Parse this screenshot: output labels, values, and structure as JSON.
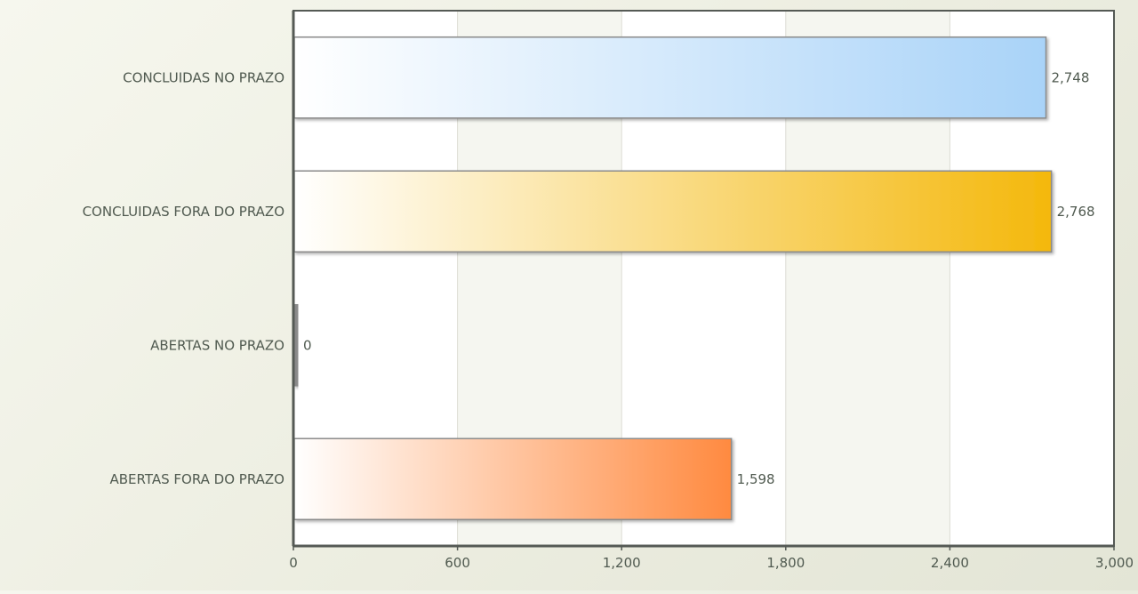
{
  "chart_data": {
    "type": "bar",
    "orientation": "horizontal",
    "categories": [
      "CONCLUIDAS NO PRAZO",
      "CONCLUIDAS FORA DO PRAZO",
      "ABERTAS NO PRAZO",
      "ABERTAS FORA DO PRAZO"
    ],
    "values": [
      2748,
      2768,
      0,
      1598
    ],
    "value_labels": [
      "2,748",
      "2,768",
      "0",
      "1,598"
    ],
    "colors": [
      "#a9d3f8",
      "#f4b80c",
      "#8a8a8a",
      "#ff8a40"
    ],
    "xlim": [
      0,
      3000
    ],
    "xticks": [
      0,
      600,
      1200,
      1800,
      2400,
      3000
    ],
    "xtick_labels": [
      "0",
      "600",
      "1,200",
      "1,800",
      "2,400",
      "3,000"
    ],
    "grid": "vertical",
    "title": "",
    "xlabel": "",
    "ylabel": ""
  }
}
